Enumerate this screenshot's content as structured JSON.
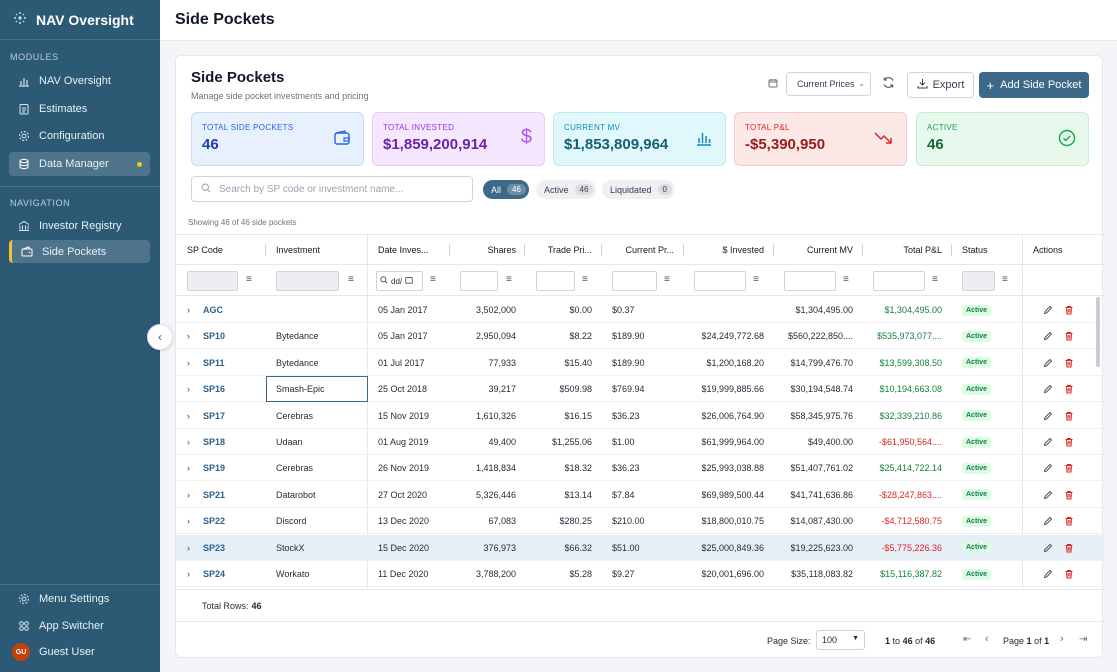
{
  "app": {
    "title": "NAV Oversight"
  },
  "sidebar": {
    "modules_label": "MODULES",
    "modules": [
      {
        "label": "NAV Oversight",
        "icon": "bar-chart-icon"
      },
      {
        "label": "Estimates",
        "icon": "clipboard-icon"
      },
      {
        "label": "Configuration",
        "icon": "gear-icon"
      },
      {
        "label": "Data Manager",
        "icon": "database-icon"
      }
    ],
    "navigation_label": "NAVIGATION",
    "navigation": [
      {
        "label": "Investor Registry",
        "icon": "bank-icon"
      },
      {
        "label": "Side Pockets",
        "icon": "wallet-icon"
      }
    ],
    "menu_settings": "Menu Settings",
    "app_switcher": "App Switcher",
    "user": {
      "initials": "GU",
      "name": "Guest User"
    }
  },
  "header": {
    "title": "Side Pockets"
  },
  "page": {
    "title": "Side Pockets",
    "subtitle": "Manage side pocket investments and pricing",
    "price_select": "Current Prices",
    "export_label": "Export",
    "add_label": "Add Side Pocket"
  },
  "stats": [
    {
      "label": "TOTAL SIDE POCKETS",
      "value": "46",
      "icon": "wallet-icon",
      "color": "#2563eb"
    },
    {
      "label": "TOTAL INVESTED",
      "value": "$1,859,200,914",
      "icon": "dollar-icon",
      "color": "#9333ea"
    },
    {
      "label": "CURRENT MV",
      "value": "$1,853,809,964",
      "icon": "bar-chart-icon",
      "color": "#0891b2"
    },
    {
      "label": "TOTAL P&L",
      "value": "-$5,390,950",
      "icon": "trend-down-icon",
      "color": "#dc2626"
    },
    {
      "label": "ACTIVE",
      "value": "46",
      "icon": "check-circle-icon",
      "color": "#16a34a"
    }
  ],
  "search": {
    "placeholder": "Search by SP code or investment name..."
  },
  "filters": [
    {
      "label": "All",
      "count": "46"
    },
    {
      "label": "Active",
      "count": "46"
    },
    {
      "label": "Liquidated",
      "count": "0"
    }
  ],
  "showing_text": "Showing 46 of 46 side pockets",
  "grid": {
    "columns": [
      "SP Code",
      "Investment",
      "Date Inves...",
      "Shares",
      "Trade Pri...",
      "Current Pr...",
      "$ Invested",
      "Current MV",
      "Total P&L",
      "Status",
      "Actions"
    ],
    "date_filter_placeholder": "dd/",
    "rows": [
      {
        "code": "AGC",
        "investment": "",
        "date": "05 Jan 2017",
        "shares": "3,502,000",
        "trade": "$0.00",
        "current": "$0.37",
        "invested": "",
        "mv": "$1,304,495.00",
        "pnl": "$1,304,495.00",
        "pnl_sign": "pos",
        "status": "Active"
      },
      {
        "code": "SP10",
        "investment": "Bytedance",
        "date": "05 Jan 2017",
        "shares": "2,950,094",
        "trade": "$8.22",
        "current": "$189.90",
        "invested": "$24,249,772.68",
        "mv": "$560,222,850....",
        "pnl": "$535,973,077....",
        "pnl_sign": "pos",
        "status": "Active"
      },
      {
        "code": "SP11",
        "investment": "Bytedance",
        "date": "01 Jul 2017",
        "shares": "77,933",
        "trade": "$15.40",
        "current": "$189.90",
        "invested": "$1,200,168.20",
        "mv": "$14,799,476.70",
        "pnl": "$13,599,308.50",
        "pnl_sign": "pos",
        "status": "Active"
      },
      {
        "code": "SP16",
        "investment": "Smash-Epic",
        "date": "25 Oct 2018",
        "shares": "39,217",
        "trade": "$509.98",
        "current": "$769.94",
        "invested": "$19,999,885.66",
        "mv": "$30,194,548.74",
        "pnl": "$10,194,663.08",
        "pnl_sign": "pos",
        "status": "Active"
      },
      {
        "code": "SP17",
        "investment": "Cerebras",
        "date": "15 Nov 2019",
        "shares": "1,610,326",
        "trade": "$16.15",
        "current": "$36.23",
        "invested": "$26,006,764.90",
        "mv": "$58,345,975.76",
        "pnl": "$32,339,210.86",
        "pnl_sign": "pos",
        "status": "Active"
      },
      {
        "code": "SP18",
        "investment": "Udaan",
        "date": "01 Aug 2019",
        "shares": "49,400",
        "trade": "$1,255.06",
        "current": "$1.00",
        "invested": "$61,999,964.00",
        "mv": "$49,400.00",
        "pnl": "-$61,950,564....",
        "pnl_sign": "neg",
        "status": "Active"
      },
      {
        "code": "SP19",
        "investment": "Cerebras",
        "date": "26 Nov 2019",
        "shares": "1,418,834",
        "trade": "$18.32",
        "current": "$36.23",
        "invested": "$25,993,038.88",
        "mv": "$51,407,761.02",
        "pnl": "$25,414,722.14",
        "pnl_sign": "pos",
        "status": "Active"
      },
      {
        "code": "SP21",
        "investment": "Datarobot",
        "date": "27 Oct 2020",
        "shares": "5,326,446",
        "trade": "$13.14",
        "current": "$7.84",
        "invested": "$69,989,500.44",
        "mv": "$41,741,636.86",
        "pnl": "-$28,247,863....",
        "pnl_sign": "neg",
        "status": "Active"
      },
      {
        "code": "SP22",
        "investment": "Discord",
        "date": "13 Dec 2020",
        "shares": "67,083",
        "trade": "$280.25",
        "current": "$210.00",
        "invested": "$18,800,010.75",
        "mv": "$14,087,430.00",
        "pnl": "-$4,712,580.75",
        "pnl_sign": "neg",
        "status": "Active"
      },
      {
        "code": "SP23",
        "investment": "StockX",
        "date": "15 Dec 2020",
        "shares": "376,973",
        "trade": "$66.32",
        "current": "$51.00",
        "invested": "$25,000,849.36",
        "mv": "$19,225,623.00",
        "pnl": "-$5,775,226.36",
        "pnl_sign": "neg",
        "status": "Active"
      },
      {
        "code": "SP24",
        "investment": "Workato",
        "date": "11 Dec 2020",
        "shares": "3,788,200",
        "trade": "$5.28",
        "current": "$9.27",
        "invested": "$20,001,696.00",
        "mv": "$35,118,083.82",
        "pnl": "$15,116,387.82",
        "pnl_sign": "pos",
        "status": "Active"
      }
    ],
    "total_rows_label": "Total Rows:",
    "total_rows": "46"
  },
  "pager": {
    "page_size_label": "Page Size:",
    "page_size": "100",
    "range_from": "1",
    "to_word": "to",
    "range_to": "46",
    "of_word": "of",
    "total": "46",
    "page_word": "Page",
    "page_current": "1",
    "page_total": "1"
  }
}
